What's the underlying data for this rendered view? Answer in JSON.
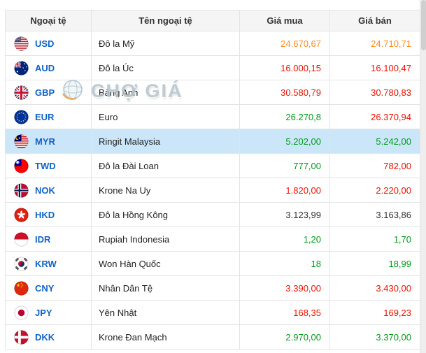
{
  "watermark": {
    "text": "CHỢ GIÁ",
    "logo_icon": "globe-icon"
  },
  "colors": {
    "red": "#ee1100",
    "green": "#009b1a",
    "orange": "#ff8c1a",
    "dark": "#333333",
    "code_blue": "#1063c8",
    "highlight_row": "#cbe6f9",
    "header_bg": "#f5f5f5"
  },
  "table": {
    "headers": [
      "Ngoại tệ",
      "Tên ngoại tệ",
      "Giá mua",
      "Giá bán"
    ],
    "rows": [
      {
        "code": "USD",
        "flag": "flag-usd",
        "name": "Đô la Mỹ",
        "buy": "24.670,67",
        "buy_color": "orange",
        "sell": "24.710,71",
        "sell_color": "orange",
        "highlighted": false
      },
      {
        "code": "AUD",
        "flag": "flag-aud",
        "name": "Đô la Úc",
        "buy": "16.000,15",
        "buy_color": "red",
        "sell": "16.100,47",
        "sell_color": "red",
        "highlighted": false
      },
      {
        "code": "GBP",
        "flag": "flag-gbp",
        "name": "Bảng Anh",
        "buy": "30.580,79",
        "buy_color": "red",
        "sell": "30.780,83",
        "sell_color": "red",
        "highlighted": false
      },
      {
        "code": "EUR",
        "flag": "flag-eur",
        "name": "Euro",
        "buy": "26.270,8",
        "buy_color": "green",
        "sell": "26.370,94",
        "sell_color": "red",
        "highlighted": false
      },
      {
        "code": "MYR",
        "flag": "flag-myr",
        "name": "Ringit Malaysia",
        "buy": "5.202,00",
        "buy_color": "green",
        "sell": "5.242,00",
        "sell_color": "green",
        "highlighted": true
      },
      {
        "code": "TWD",
        "flag": "flag-twd",
        "name": "Đô la Đài Loan",
        "buy": "777,00",
        "buy_color": "green",
        "sell": "782,00",
        "sell_color": "red",
        "highlighted": false
      },
      {
        "code": "NOK",
        "flag": "flag-nok",
        "name": "Krone Na Uy",
        "buy": "1.820,00",
        "buy_color": "red",
        "sell": "2.220,00",
        "sell_color": "red",
        "highlighted": false
      },
      {
        "code": "HKD",
        "flag": "flag-hkd",
        "name": "Đô la Hồng Kông",
        "buy": "3.123,99",
        "buy_color": "dark",
        "sell": "3.163,86",
        "sell_color": "dark",
        "highlighted": false
      },
      {
        "code": "IDR",
        "flag": "flag-idr",
        "name": "Rupiah Indonesia",
        "buy": "1,20",
        "buy_color": "green",
        "sell": "1,70",
        "sell_color": "green",
        "highlighted": false
      },
      {
        "code": "KRW",
        "flag": "flag-krw",
        "name": "Won Hàn Quốc",
        "buy": "18",
        "buy_color": "green",
        "sell": "18,99",
        "sell_color": "green",
        "highlighted": false
      },
      {
        "code": "CNY",
        "flag": "flag-cny",
        "name": "Nhân Dân Tệ",
        "buy": "3.390,00",
        "buy_color": "red",
        "sell": "3.430,00",
        "sell_color": "red",
        "highlighted": false
      },
      {
        "code": "JPY",
        "flag": "flag-jpy",
        "name": "Yên Nhật",
        "buy": "168,35",
        "buy_color": "red",
        "sell": "169,23",
        "sell_color": "red",
        "highlighted": false
      },
      {
        "code": "DKK",
        "flag": "flag-dkk",
        "name": "Krone Đan Mạch",
        "buy": "2.970,00",
        "buy_color": "green",
        "sell": "3.370,00",
        "sell_color": "green",
        "highlighted": false
      }
    ]
  }
}
